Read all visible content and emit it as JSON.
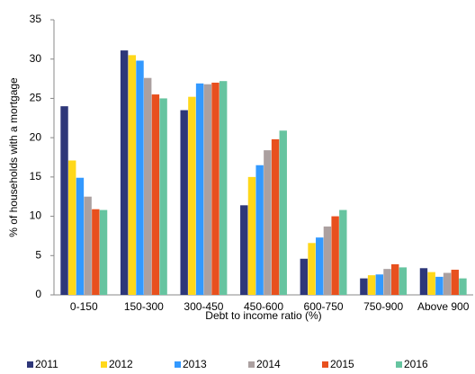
{
  "chart_data": {
    "type": "bar",
    "x_label": "Debt to income ratio (%)",
    "y_label": "% of households with a mortgage",
    "categories": [
      "0-150",
      "150-300",
      "300-450",
      "450-600",
      "600-750",
      "750-900",
      "Above 900"
    ],
    "series": [
      {
        "name": "2011",
        "color": "#2e3779",
        "values": [
          24.0,
          31.1,
          23.5,
          11.4,
          4.6,
          2.1,
          3.4
        ]
      },
      {
        "name": "2012",
        "color": "#ffd81a",
        "values": [
          17.1,
          30.5,
          25.2,
          15.0,
          6.6,
          2.5,
          2.9
        ]
      },
      {
        "name": "2013",
        "color": "#3399ff",
        "values": [
          14.9,
          29.8,
          26.9,
          16.5,
          7.3,
          2.6,
          2.3
        ]
      },
      {
        "name": "2014",
        "color": "#aba0a0",
        "values": [
          12.5,
          27.6,
          26.8,
          18.4,
          8.7,
          3.3,
          2.8
        ]
      },
      {
        "name": "2015",
        "color": "#e8501e",
        "values": [
          10.9,
          25.5,
          27.0,
          19.8,
          10.0,
          3.9,
          3.2
        ]
      },
      {
        "name": "2016",
        "color": "#66c4a0",
        "values": [
          10.8,
          25.0,
          27.2,
          20.9,
          10.8,
          3.5,
          2.1
        ]
      }
    ],
    "ylim": [
      0,
      35
    ],
    "yticks": [
      0,
      5,
      10,
      15,
      20,
      25,
      30,
      35
    ],
    "grid": false
  }
}
